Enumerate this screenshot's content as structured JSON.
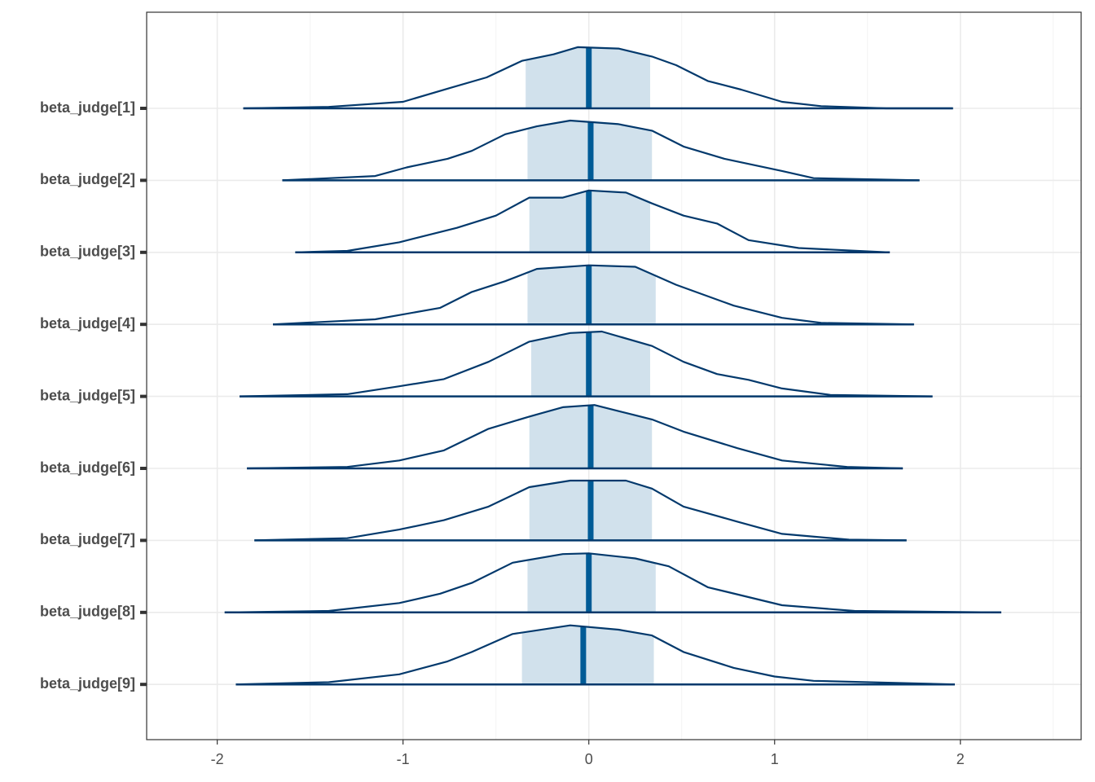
{
  "chart_data": {
    "type": "ridge",
    "categories": [
      "beta_judge[1]",
      "beta_judge[2]",
      "beta_judge[3]",
      "beta_judge[4]",
      "beta_judge[5]",
      "beta_judge[6]",
      "beta_judge[7]",
      "beta_judge[8]",
      "beta_judge[9]"
    ],
    "line_color": "#03396c",
    "interval_color": "#d1e1ec",
    "median_color": "#005b96",
    "grid": true,
    "xlim": [
      -2.38,
      2.65
    ],
    "xticks": [
      -2,
      -1,
      0,
      1,
      2
    ],
    "series": [
      {
        "x": [
          -1.86,
          -1.4,
          -1.0,
          -0.75,
          -0.55,
          -0.36,
          -0.19,
          -0.06,
          0.16,
          0.34,
          0.47,
          0.64,
          0.82,
          1.04,
          1.25,
          1.6,
          1.96
        ],
        "density": [
          0,
          0.02,
          0.09,
          0.28,
          0.43,
          0.66,
          0.75,
          0.85,
          0.83,
          0.72,
          0.6,
          0.38,
          0.26,
          0.09,
          0.03,
          0,
          0
        ],
        "interval": [
          -0.34,
          0.33
        ],
        "median": 0
      },
      {
        "x": [
          -1.65,
          -1.15,
          -0.98,
          -0.76,
          -0.63,
          -0.45,
          -0.28,
          -0.1,
          0.16,
          0.34,
          0.51,
          0.73,
          1.04,
          1.21,
          1.78
        ],
        "density": [
          0,
          0.06,
          0.18,
          0.3,
          0.41,
          0.64,
          0.75,
          0.83,
          0.78,
          0.69,
          0.47,
          0.3,
          0.13,
          0.03,
          0
        ],
        "interval": [
          -0.33,
          0.34
        ],
        "median": 0.01
      },
      {
        "x": [
          -1.58,
          -1.3,
          -1.02,
          -0.71,
          -0.5,
          -0.32,
          -0.14,
          0,
          0.2,
          0.34,
          0.51,
          0.69,
          0.86,
          1.13,
          1.62
        ],
        "density": [
          0,
          0.02,
          0.14,
          0.34,
          0.51,
          0.76,
          0.76,
          0.86,
          0.83,
          0.68,
          0.51,
          0.4,
          0.17,
          0.06,
          0
        ],
        "interval": [
          -0.32,
          0.33
        ],
        "median": 0
      },
      {
        "x": [
          -1.7,
          -1.15,
          -0.8,
          -0.63,
          -0.45,
          -0.28,
          0,
          0.25,
          0.47,
          0.78,
          1.04,
          1.25,
          1.75
        ],
        "density": [
          0,
          0.07,
          0.23,
          0.45,
          0.6,
          0.77,
          0.82,
          0.8,
          0.55,
          0.26,
          0.09,
          0.02,
          0
        ],
        "interval": [
          -0.33,
          0.36
        ],
        "median": 0
      },
      {
        "x": [
          -1.88,
          -1.3,
          -1.02,
          -0.78,
          -0.54,
          -0.32,
          -0.1,
          0.07,
          0.34,
          0.51,
          0.69,
          0.86,
          1.04,
          1.3,
          1.85
        ],
        "density": [
          0,
          0.03,
          0.14,
          0.24,
          0.48,
          0.76,
          0.88,
          0.9,
          0.7,
          0.48,
          0.31,
          0.23,
          0.11,
          0.02,
          0
        ],
        "interval": [
          -0.31,
          0.33
        ],
        "median": 0
      },
      {
        "x": [
          -1.84,
          -1.3,
          -1.02,
          -0.78,
          -0.54,
          -0.32,
          -0.14,
          0.03,
          0.34,
          0.51,
          0.8,
          1.04,
          1.39,
          1.69
        ],
        "density": [
          0,
          0.02,
          0.11,
          0.25,
          0.55,
          0.72,
          0.85,
          0.88,
          0.68,
          0.51,
          0.28,
          0.11,
          0.02,
          0
        ],
        "interval": [
          -0.32,
          0.34
        ],
        "median": 0.01
      },
      {
        "x": [
          -1.8,
          -1.3,
          -1.02,
          -0.78,
          -0.54,
          -0.32,
          -0.1,
          0.2,
          0.34,
          0.51,
          0.8,
          1.04,
          1.4,
          1.71
        ],
        "density": [
          0,
          0.03,
          0.15,
          0.28,
          0.47,
          0.74,
          0.83,
          0.83,
          0.72,
          0.47,
          0.26,
          0.09,
          0.01,
          0
        ],
        "interval": [
          -0.32,
          0.34
        ],
        "median": 0.01
      },
      {
        "x": [
          -1.96,
          -1.4,
          -1.02,
          -0.8,
          -0.63,
          -0.41,
          -0.14,
          0,
          0.25,
          0.43,
          0.64,
          1.04,
          1.43,
          2.22
        ],
        "density": [
          0,
          0.02,
          0.13,
          0.26,
          0.41,
          0.69,
          0.81,
          0.82,
          0.75,
          0.64,
          0.35,
          0.1,
          0.02,
          0
        ],
        "interval": [
          -0.33,
          0.36
        ],
        "median": 0
      },
      {
        "x": [
          -1.9,
          -1.4,
          -1.02,
          -0.76,
          -0.63,
          -0.41,
          -0.1,
          0.16,
          0.34,
          0.51,
          0.78,
          1.0,
          1.21,
          1.97
        ],
        "density": [
          0,
          0.03,
          0.14,
          0.32,
          0.45,
          0.7,
          0.82,
          0.76,
          0.68,
          0.45,
          0.23,
          0.11,
          0.05,
          0
        ],
        "interval": [
          -0.36,
          0.35
        ],
        "median": -0.03
      }
    ]
  }
}
